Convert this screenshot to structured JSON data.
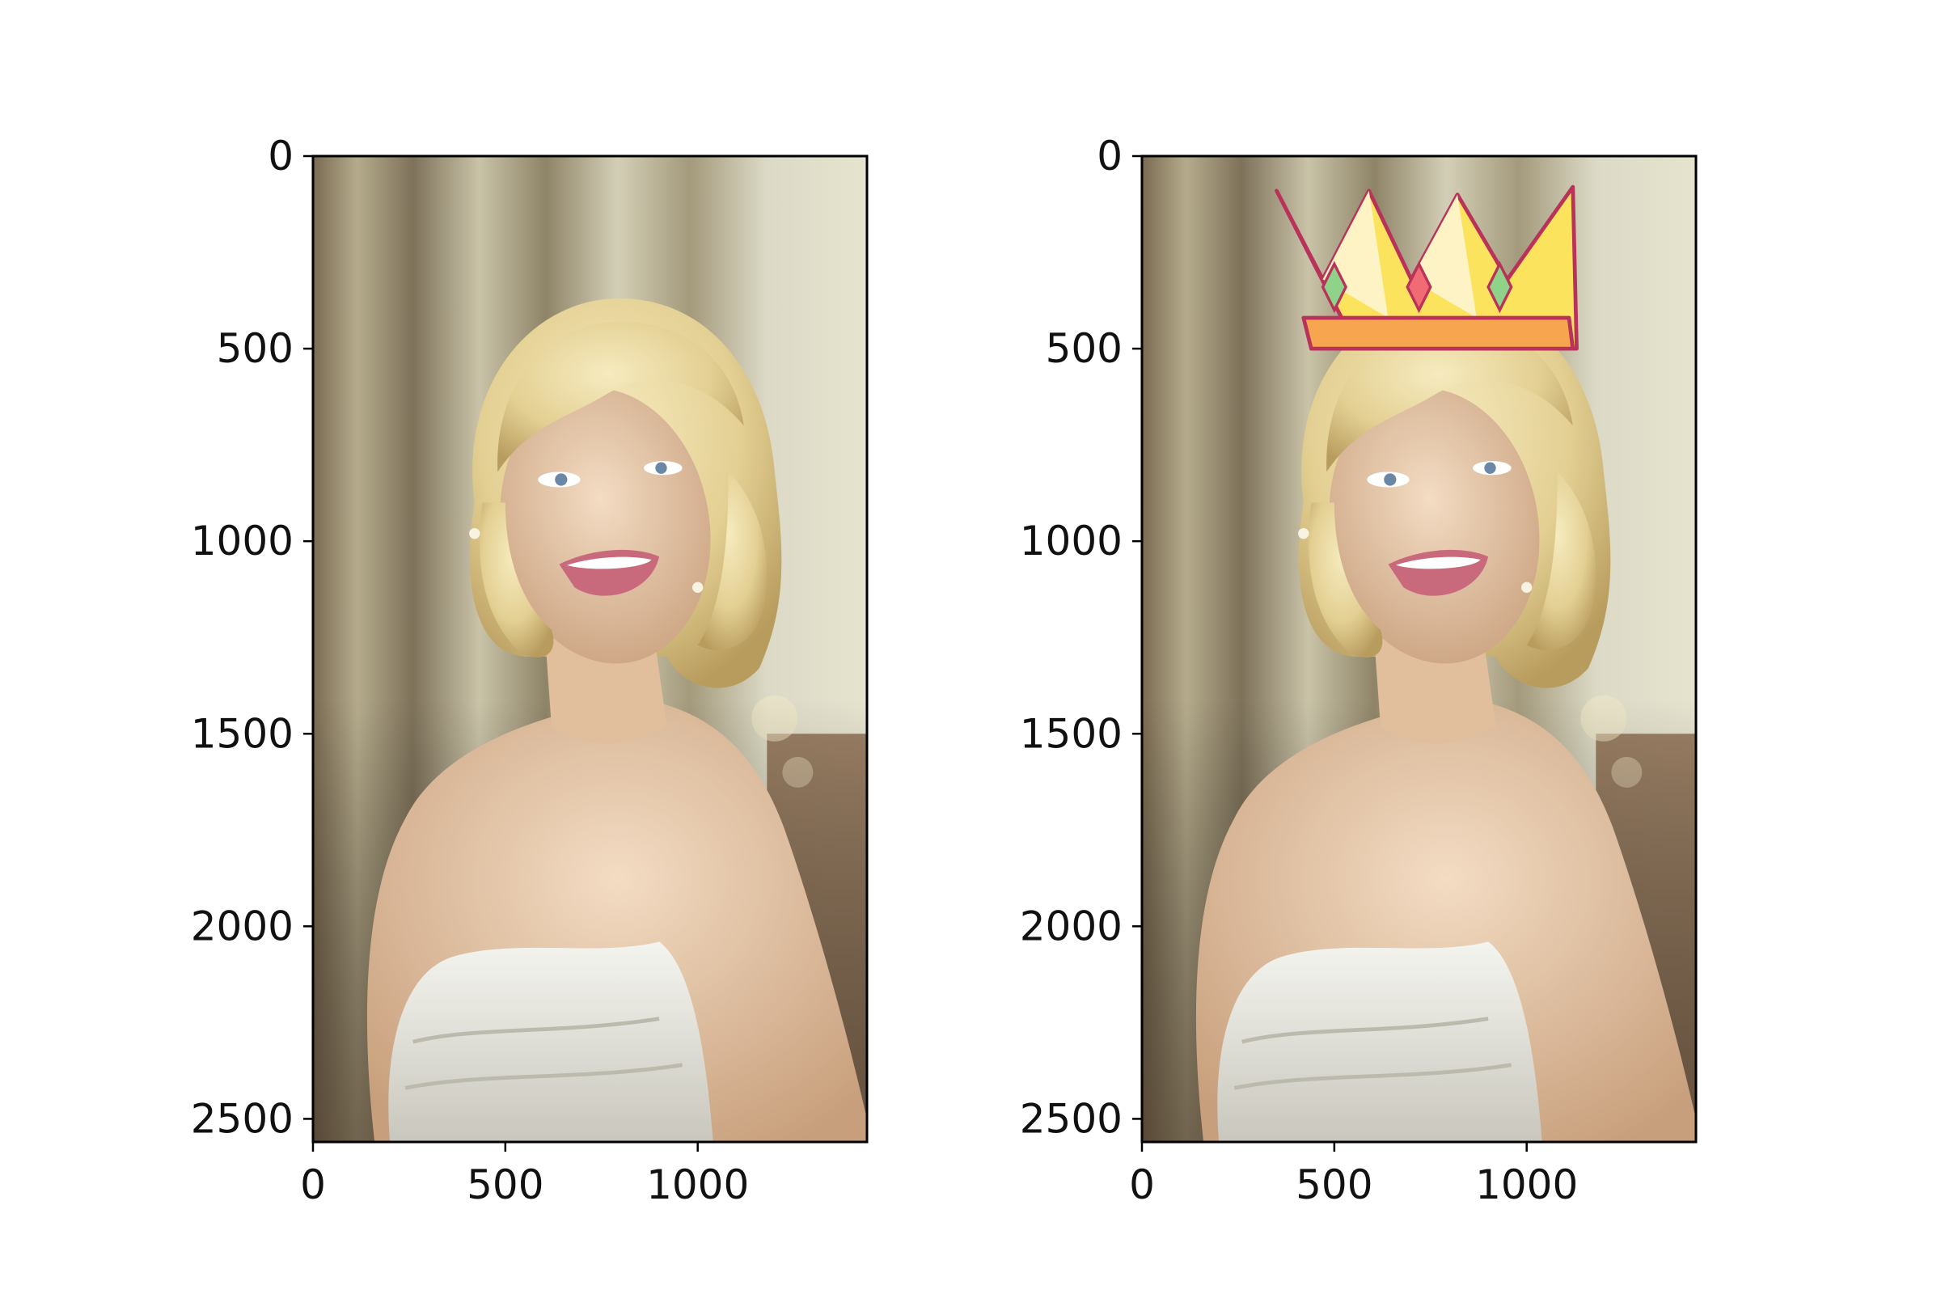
{
  "figure": {
    "background": "#ffffff",
    "layout": "1 row x 2 image panels"
  },
  "chart_data": [
    {
      "type": "image",
      "title": "",
      "xlabel": "",
      "ylabel": "",
      "xlim": [
        0,
        1440
      ],
      "ylim": [
        2560,
        0
      ],
      "xticks": [
        0,
        500,
        1000
      ],
      "yticks": [
        0,
        500,
        1000,
        1500,
        2000,
        2500
      ],
      "image_description": "Original portrait photo: smiling woman with short wavy blonde hair, bare shoulders, white strapless dress, blurred warm-toned curtain background",
      "overlay": null
    },
    {
      "type": "image",
      "title": "",
      "xlabel": "",
      "ylabel": "",
      "xlim": [
        0,
        1440
      ],
      "ylim": [
        2560,
        0
      ],
      "xticks": [
        0,
        500,
        1000
      ],
      "yticks": [
        0,
        500,
        1000,
        1500,
        2000,
        2500
      ],
      "image_description": "Same portrait with a cartoon crown overlaid on the head",
      "overlay": {
        "icon": "crown-icon",
        "colors": {
          "gold": "#fbe35e",
          "light": "#fdf3c4",
          "band": "#f7a64f",
          "outline": "#b8325a",
          "gem_red": "#f06b73",
          "gem_green": "#8fd38a"
        }
      }
    }
  ],
  "colors": {
    "hair": "#e8d49a",
    "skin": "#e6c6a6",
    "dress": "#ecece6",
    "background_warm": "#8e7458",
    "background_light": "#d9d7c2"
  }
}
